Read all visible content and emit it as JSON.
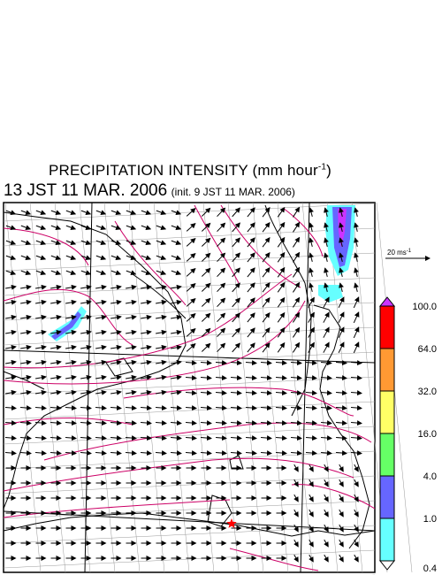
{
  "title": {
    "main": "PRECIPITATION INTENSITY (mm hour",
    "unit_exp": "-1",
    "close": ")"
  },
  "subtitle": {
    "time": "13 JST 11 MAR. 2006",
    "init": "(init. 9 JST 11 MAR. 2006)"
  },
  "wind_scale": {
    "label": "20 ms",
    "exp": "-1"
  },
  "legend": {
    "levels": [
      "100.0",
      "64.0",
      "32.0",
      "16.0",
      "4.0",
      "1.0",
      "0.4"
    ],
    "colors": [
      "#ff0000",
      "#ff9933",
      "#ffff66",
      "#66ff66",
      "#6666ff",
      "#66ffff"
    ],
    "top_color": "#cc33ff"
  },
  "colors": {
    "isobar": "#cc0066",
    "coast": "#000000",
    "grid": "#999999"
  },
  "marker": {
    "icon": "star-icon",
    "color": "#ff0000"
  }
}
